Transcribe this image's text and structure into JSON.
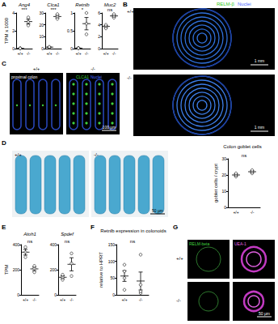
{
  "chart_data": [
    {
      "type": "scatter",
      "title": "Ang4",
      "y_label": "TPM x 1000",
      "categories": [
        "+/+",
        "-/-"
      ],
      "values": [
        [
          0.02,
          0.03,
          0.02
        ],
        [
          2.6,
          3.0,
          3.5
        ]
      ],
      "ylim": [
        0,
        4
      ],
      "yticks": [
        0,
        2,
        4
      ],
      "annotation": "***",
      "grid": false
    },
    {
      "type": "scatter",
      "title": "Clca1",
      "categories": [
        "+/+",
        "-/-"
      ],
      "values": [
        [
          1.2,
          1.0,
          1.5
        ],
        [
          25,
          27,
          29
        ]
      ],
      "ylim": [
        0,
        30
      ],
      "yticks": [
        0,
        10,
        20,
        30
      ],
      "annotation": "***",
      "grid": false
    },
    {
      "type": "scatter",
      "title": "Retnlb",
      "categories": [
        "+/+",
        "-/-"
      ],
      "values": [
        [
          0.01,
          0.02,
          0.01
        ],
        [
          0.4,
          0.7,
          1.0
        ]
      ],
      "ylim": [
        0,
        1
      ],
      "yticks": [
        0,
        0.5,
        1
      ],
      "annotation": "*",
      "grid": false
    },
    {
      "type": "scatter",
      "title": "Muc2",
      "categories": [
        "+/+",
        "-/-"
      ],
      "values": [
        [
          3.4,
          3.8,
          4.0
        ],
        [
          5.2,
          5.5,
          5.8
        ]
      ],
      "ylim": [
        0,
        6
      ],
      "yticks": [
        0,
        2,
        4,
        6
      ],
      "annotation": "ns",
      "grid": false
    },
    {
      "type": "scatter",
      "title": "Colon goblet cells",
      "y_label": "goblet cells / crypt",
      "categories": [
        "+/+",
        "-/-"
      ],
      "values": [
        [
          19,
          20,
          21
        ],
        [
          21,
          22,
          23
        ]
      ],
      "ylim": [
        0,
        30
      ],
      "yticks": [
        0,
        10,
        20,
        30
      ],
      "annotation": "ns",
      "grid": false
    },
    {
      "type": "scatter",
      "title": "Atoh1",
      "y_label": "TPM",
      "categories": [
        "+/+",
        "-/-"
      ],
      "values": [
        [
          300,
          340,
          380
        ],
        [
          180,
          210,
          230
        ]
      ],
      "ylim": [
        0,
        400
      ],
      "yticks": [
        0,
        200,
        400
      ],
      "annotation": "ns",
      "grid": false
    },
    {
      "type": "scatter",
      "title": "Spdef",
      "categories": [
        "+/+",
        "-/-"
      ],
      "values": [
        [
          120,
          140,
          160
        ],
        [
          150,
          250,
          330
        ]
      ],
      "ylim": [
        0,
        400
      ],
      "yticks": [
        0,
        200,
        400
      ],
      "annotation": "ns",
      "grid": false
    },
    {
      "type": "scatter",
      "title": "Retnlb expression in colonoids",
      "y_label": "relative to HPRT",
      "categories": [
        "+/+",
        "-/-"
      ],
      "values": [
        [
          15,
          50,
          70,
          90
        ],
        [
          5,
          10,
          30,
          120
        ]
      ],
      "ylim": [
        0,
        150
      ],
      "yticks": [
        0,
        50,
        100,
        150
      ],
      "annotation": "ns",
      "grid": false
    }
  ],
  "panel_letters": [
    "A",
    "B",
    "C",
    "D",
    "E",
    "F",
    "G"
  ],
  "images": {
    "B": {
      "channels": [
        "RELM-β",
        "Nuclei"
      ],
      "genotypes": [
        "+/+",
        "-/-"
      ],
      "scale_bar": "1 mm"
    },
    "C": {
      "region": "proximal colon",
      "channels": [
        "CLCA1",
        "Nuclei"
      ],
      "genotypes": [
        "+/+",
        "-/-"
      ],
      "scale_bar": "100 µm"
    },
    "D": {
      "genotypes": [
        "+/+",
        "-/-"
      ],
      "scale_bar": "50 µm"
    },
    "G": {
      "channels": [
        "RELM-beta",
        "UEA-1"
      ],
      "genotypes": [
        "+/+",
        "-/-"
      ],
      "scale_bar": "50 µm"
    }
  }
}
